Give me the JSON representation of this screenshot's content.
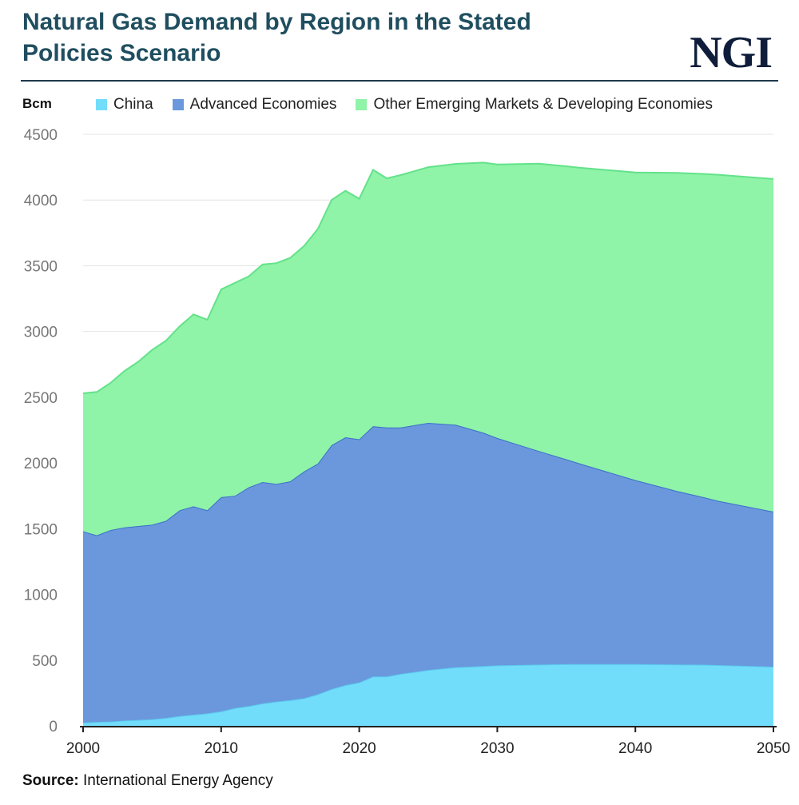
{
  "header": {
    "title": "Natural Gas Demand by Region in the Stated Policies Scenario",
    "logo": "NGI"
  },
  "footer": {
    "source_label": "Source:",
    "source_value": "International Energy Agency"
  },
  "chart_data": {
    "type": "area",
    "stacked": true,
    "ylabel": "Bcm",
    "ylim": [
      0,
      4500
    ],
    "yticks": [
      0,
      500,
      1000,
      1500,
      2000,
      2500,
      3000,
      3500,
      4000,
      4500
    ],
    "xlim": [
      2000,
      2050
    ],
    "xticks": [
      2000,
      2010,
      2020,
      2030,
      2040,
      2050
    ],
    "grid": true,
    "legend_position": "top",
    "series": [
      {
        "name": "China",
        "color": "#72ddfa",
        "x": [
          2000,
          2001,
          2002,
          2003,
          2004,
          2005,
          2006,
          2007,
          2008,
          2009,
          2010,
          2011,
          2012,
          2013,
          2014,
          2015,
          2016,
          2017,
          2018,
          2019,
          2020,
          2021,
          2022,
          2023,
          2025,
          2027,
          2030,
          2035,
          2040,
          2045,
          2050
        ],
        "values": [
          25,
          30,
          33,
          40,
          45,
          50,
          60,
          75,
          85,
          95,
          110,
          135,
          150,
          170,
          185,
          195,
          210,
          240,
          280,
          310,
          330,
          375,
          375,
          395,
          425,
          445,
          460,
          470,
          470,
          465,
          450
        ]
      },
      {
        "name": "Advanced Economies",
        "color": "#6b98dc",
        "x": [
          2000,
          2001,
          2002,
          2003,
          2004,
          2005,
          2006,
          2007,
          2008,
          2009,
          2010,
          2011,
          2012,
          2013,
          2014,
          2015,
          2016,
          2017,
          2018,
          2019,
          2020,
          2021,
          2022,
          2023,
          2025,
          2027,
          2029,
          2030,
          2033,
          2036,
          2040,
          2043,
          2046,
          2050
        ],
        "values": [
          1455,
          1420,
          1457,
          1470,
          1475,
          1480,
          1500,
          1565,
          1585,
          1545,
          1630,
          1615,
          1665,
          1685,
          1655,
          1665,
          1725,
          1755,
          1855,
          1885,
          1850,
          1905,
          1895,
          1875,
          1880,
          1845,
          1775,
          1730,
          1625,
          1525,
          1400,
          1320,
          1250,
          1180
        ]
      },
      {
        "name": "Other Emerging Markets & Developing Economies",
        "color": "#8ff3a8",
        "x": [
          2000,
          2001,
          2002,
          2003,
          2004,
          2005,
          2006,
          2007,
          2008,
          2009,
          2010,
          2011,
          2012,
          2013,
          2014,
          2015,
          2016,
          2017,
          2018,
          2019,
          2020,
          2021,
          2022,
          2023,
          2025,
          2027,
          2029,
          2030,
          2033,
          2036,
          2040,
          2043,
          2046,
          2050
        ],
        "values": [
          1050,
          1090,
          1120,
          1190,
          1250,
          1330,
          1370,
          1400,
          1460,
          1450,
          1580,
          1620,
          1605,
          1655,
          1680,
          1700,
          1715,
          1785,
          1865,
          1875,
          1830,
          1950,
          1895,
          1920,
          1945,
          1985,
          2055,
          2080,
          2185,
          2250,
          2340,
          2420,
          2480,
          2530
        ]
      }
    ]
  }
}
